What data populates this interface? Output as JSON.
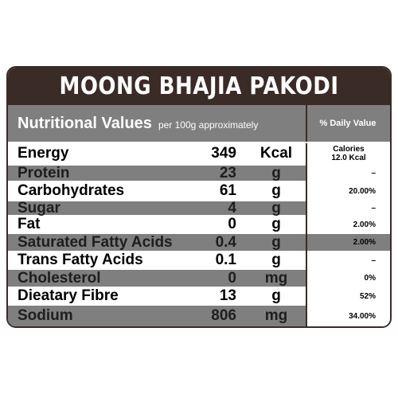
{
  "title": "MOONG BHAJIA PAKODI",
  "header": {
    "main": "Nutritional Values",
    "sub": "per 100g approximately",
    "daily": "% Daily Value"
  },
  "rows": [
    {
      "name": "Energy",
      "value": "349",
      "unit": "Kcal",
      "daily_line1": "Calories",
      "daily_line2": "12.0 Kcal"
    },
    {
      "name": "Protein",
      "value": "23",
      "unit": "g",
      "daily": "–"
    },
    {
      "name": "Carbohydrates",
      "value": "61",
      "unit": "g",
      "daily": "20.00%"
    },
    {
      "name": "Sugar",
      "value": "4",
      "unit": "g",
      "daily": "–"
    },
    {
      "name": "Fat",
      "value": "0",
      "unit": "g",
      "daily": "2.00%"
    },
    {
      "name": "Saturated Fatty Acids",
      "value": "0.4",
      "unit": "g",
      "daily": "2.00%"
    },
    {
      "name": "Trans Fatty Acids",
      "value": "0.1",
      "unit": "g",
      "daily": "–"
    },
    {
      "name": "Cholesterol",
      "value": "0",
      "unit": "mg",
      "daily": "0%"
    },
    {
      "name": "Dieatary Fibre",
      "value": "13",
      "unit": "g",
      "daily": "52%"
    },
    {
      "name": "Sodium",
      "value": "806",
      "unit": "mg",
      "daily": "34.00%"
    }
  ],
  "colors": {
    "title_bg": "#3b2b27",
    "shade": "#7f7f7f",
    "border": "#3a2c28"
  }
}
